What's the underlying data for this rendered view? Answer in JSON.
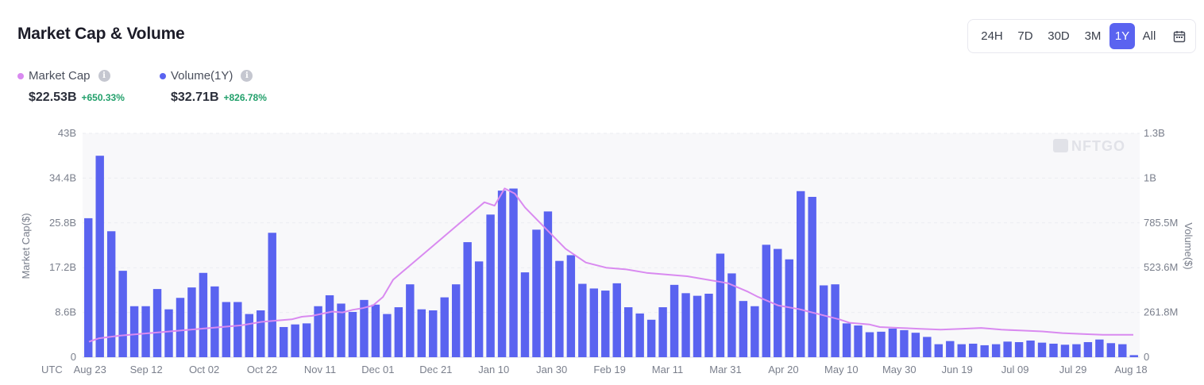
{
  "header": {
    "title": "Market Cap & Volume"
  },
  "range_selector": {
    "options": [
      "24H",
      "7D",
      "30D",
      "3M",
      "1Y",
      "All"
    ],
    "active": "1Y",
    "calendar_icon": "calendar-icon"
  },
  "legend": {
    "market_cap": {
      "label": "Market Cap",
      "value": "$22.53B",
      "change": "+650.33%",
      "color": "#d98af0"
    },
    "volume": {
      "label": "Volume(1Y)",
      "value": "$32.71B",
      "change": "+826.78%",
      "color": "#5a63f0"
    }
  },
  "watermark": "NFTGO",
  "chart_data": {
    "type": "bar+line",
    "xlabel": "UTC",
    "y_left_label": "Market Cap($)",
    "y_right_label": "Volume($)",
    "y_left_ticks": [
      "0",
      "8.6B",
      "17.2B",
      "25.8B",
      "34.4B",
      "43B"
    ],
    "y_right_ticks": [
      "0",
      "261.8M",
      "523.6M",
      "785.5M",
      "1B",
      "1.3B"
    ],
    "y_left_range": [
      0,
      43
    ],
    "y_right_range": [
      0,
      1.3
    ],
    "x_tick_labels": [
      "Aug 23",
      "Sep 12",
      "Oct 02",
      "Oct 22",
      "Nov 11",
      "Dec 01",
      "Dec 21",
      "Jan 10",
      "Jan 30",
      "Feb 19",
      "Mar 11",
      "Mar 31",
      "Apr 20",
      "May 10",
      "May 30",
      "Jun 19",
      "Jul 09",
      "Jul 29",
      "Aug 18"
    ],
    "x_tick_bar_index": [
      0,
      4,
      8,
      12,
      16,
      20,
      24,
      28,
      32,
      36,
      40,
      44,
      48,
      52,
      56,
      60,
      64,
      68,
      72
    ],
    "grid": true,
    "series": [
      {
        "name": "Volume(1Y)",
        "type": "bar",
        "axis": "left",
        "color": "#5a63f0",
        "values": [
          26.7,
          38.7,
          24.2,
          16.6,
          9.8,
          9.8,
          13.1,
          9.2,
          11.4,
          13.4,
          16.2,
          13.6,
          10.6,
          10.6,
          8.3,
          9.0,
          23.9,
          5.8,
          6.3,
          6.5,
          9.8,
          11.9,
          10.3,
          8.7,
          11.0,
          10.1,
          8.3,
          9.6,
          14.0,
          9.2,
          9.0,
          11.5,
          14.0,
          22.1,
          18.4,
          27.4,
          32.0,
          32.4,
          16.3,
          24.5,
          28.0,
          18.5,
          19.6,
          14.1,
          13.2,
          12.8,
          14.2,
          9.6,
          8.4,
          7.2,
          9.6,
          13.9,
          12.3,
          11.8,
          12.2,
          19.9,
          16.1,
          10.8,
          9.8,
          21.6,
          20.8,
          18.8,
          31.9,
          30.8,
          13.8,
          14.0,
          6.5,
          6.1,
          4.8,
          4.9,
          5.5,
          5.2,
          4.7,
          3.9,
          2.5,
          3.1,
          2.5,
          2.6,
          2.3,
          2.5,
          3.0,
          2.9,
          3.2,
          2.8,
          2.6,
          2.4,
          2.5,
          2.9,
          3.4,
          2.7,
          2.5,
          0.4
        ]
      },
      {
        "name": "Market Cap",
        "type": "line",
        "axis": "right",
        "color": "#d98af0",
        "x_index": [
          0,
          1,
          3,
          6,
          9,
          12,
          15,
          17,
          18,
          20,
          21,
          22,
          24,
          25,
          26,
          27,
          28,
          29,
          30,
          32,
          34,
          36,
          38,
          39,
          40,
          41,
          42,
          43,
          45,
          47,
          49,
          51,
          53,
          55,
          57,
          59,
          61,
          63,
          65,
          66,
          68,
          70,
          72,
          74,
          75,
          77,
          78,
          80,
          82,
          84,
          86,
          88,
          90,
          92,
          94,
          96,
          98,
          100,
          102,
          103
        ],
        "values": [
          0.09,
          0.11,
          0.125,
          0.14,
          0.155,
          0.17,
          0.185,
          0.205,
          0.21,
          0.22,
          0.235,
          0.24,
          0.265,
          0.26,
          0.275,
          0.285,
          0.3,
          0.35,
          0.45,
          0.55,
          0.65,
          0.75,
          0.85,
          0.9,
          0.88,
          0.98,
          0.95,
          0.87,
          0.75,
          0.63,
          0.55,
          0.52,
          0.51,
          0.49,
          0.48,
          0.47,
          0.45,
          0.43,
          0.38,
          0.35,
          0.3,
          0.28,
          0.25,
          0.22,
          0.2,
          0.19,
          0.175,
          0.17,
          0.165,
          0.16,
          0.165,
          0.17,
          0.16,
          0.155,
          0.15,
          0.14,
          0.135,
          0.13,
          0.13,
          0.13
        ]
      }
    ]
  }
}
